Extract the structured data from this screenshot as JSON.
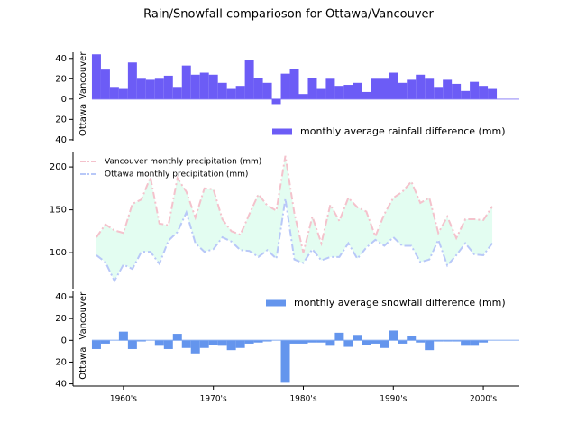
{
  "chart_data": [
    {
      "type": "bar",
      "title": "Rain/Snowfall comparioson for Ottawa/Vancouver",
      "x": [
        1957,
        1958,
        1959,
        1960,
        1961,
        1962,
        1963,
        1964,
        1965,
        1966,
        1967,
        1968,
        1969,
        1970,
        1971,
        1972,
        1973,
        1974,
        1975,
        1976,
        1977,
        1978,
        1979,
        1980,
        1981,
        1982,
        1983,
        1984,
        1985,
        1986,
        1987,
        1988,
        1989,
        1990,
        1991,
        1992,
        1993,
        1994,
        1995,
        1996,
        1997,
        1998,
        1999,
        2000,
        2001
      ],
      "series": [
        {
          "name": "monthly  average rainfall difference  (mm)",
          "color": "#6c5cf6",
          "values": [
            44,
            29,
            12,
            10,
            36,
            20,
            19,
            20,
            23,
            12,
            33,
            24,
            26,
            24,
            16,
            10,
            13,
            38,
            21,
            16,
            -5,
            25,
            30,
            5,
            21,
            10,
            20,
            13,
            14,
            16,
            7,
            20,
            20,
            26,
            16,
            19,
            24,
            20,
            12,
            19,
            15,
            8,
            17,
            13,
            10
          ]
        }
      ],
      "y_labels": {
        "positive": "Vancouver",
        "negative": "Ottawa"
      },
      "xlim": [
        1954.4,
        2004
      ],
      "ylim": [
        -41,
        46
      ],
      "yticks": [
        {
          "value": -40,
          "label": "40"
        },
        {
          "value": -20,
          "label": "20"
        },
        0,
        20,
        40
      ],
      "legend": "lower right"
    },
    {
      "type": "line",
      "x": [
        1957,
        1958,
        1959,
        1960,
        1961,
        1962,
        1963,
        1964,
        1965,
        1966,
        1967,
        1968,
        1969,
        1970,
        1971,
        1972,
        1973,
        1974,
        1975,
        1976,
        1977,
        1978,
        1979,
        1980,
        1981,
        1982,
        1983,
        1984,
        1985,
        1986,
        1987,
        1988,
        1989,
        1990,
        1991,
        1992,
        1993,
        1994,
        1995,
        1996,
        1997,
        1998,
        1999,
        2000,
        2001
      ],
      "series": [
        {
          "name": "Vancouver monthly precipitation (mm)",
          "color": "#f4c2cc",
          "values": [
            118,
            133,
            126,
            123,
            157,
            162,
            188,
            134,
            132,
            187,
            171,
            141,
            175,
            174,
            139,
            125,
            121,
            145,
            168,
            155,
            149,
            213,
            146,
            100,
            142,
            111,
            156,
            137,
            164,
            153,
            148,
            119,
            145,
            164,
            171,
            183,
            158,
            164,
            123,
            142,
            117,
            139,
            139,
            138,
            154
          ]
        },
        {
          "name": "Ottawa monthly precipitation (mm)",
          "color": "#b8c8f8",
          "values": [
            97,
            89,
            67,
            86,
            81,
            101,
            101,
            87,
            114,
            124,
            147,
            111,
            101,
            104,
            118,
            113,
            103,
            102,
            95,
            103,
            93,
            163,
            92,
            88,
            104,
            91,
            95,
            95,
            111,
            93,
            106,
            115,
            108,
            118,
            108,
            108,
            89,
            92,
            115,
            85,
            97,
            111,
            98,
            97,
            111
          ]
        }
      ],
      "fill_color": "#dcfcee",
      "xlim": [
        1954.4,
        2004
      ],
      "ylim": [
        58,
        218
      ],
      "yticks": [
        100,
        150,
        200
      ],
      "legend": "upper left"
    },
    {
      "type": "bar",
      "x": [
        1957,
        1958,
        1959,
        1960,
        1961,
        1962,
        1963,
        1964,
        1965,
        1966,
        1967,
        1968,
        1969,
        1970,
        1971,
        1972,
        1973,
        1974,
        1975,
        1976,
        1977,
        1978,
        1979,
        1980,
        1981,
        1982,
        1983,
        1984,
        1985,
        1986,
        1987,
        1988,
        1989,
        1990,
        1991,
        1992,
        1993,
        1994,
        1995,
        1996,
        1997,
        1998,
        1999,
        2000,
        2001
      ],
      "series": [
        {
          "name": "monthly  average snowfall difference  (mm)",
          "color": "#6495ed",
          "values": [
            -8,
            -3,
            0,
            8,
            -8,
            -1,
            0,
            -5,
            -8,
            6,
            -7,
            -12,
            -7,
            -4,
            -5,
            -9,
            -7,
            -3,
            -2,
            -1,
            0,
            -39,
            -3,
            -3,
            -2,
            -2,
            -5,
            7,
            -6,
            5,
            -4,
            -3,
            -7,
            9,
            -3,
            4,
            -2,
            -9,
            -1,
            -1,
            -1,
            -5,
            -5,
            -2,
            0
          ]
        }
      ],
      "y_labels": {
        "positive": "Vancouver",
        "negative": "Ottawa"
      },
      "xlim": [
        1954.4,
        2004
      ],
      "ylim": [
        -42,
        45
      ],
      "yticks": [
        {
          "value": -40,
          "label": "40"
        },
        {
          "value": -20,
          "label": "20"
        },
        0,
        20,
        40
      ],
      "xticks": [
        {
          "value": 1960,
          "label": "1960's"
        },
        {
          "value": 1970,
          "label": "1970's"
        },
        {
          "value": 1980,
          "label": "1980's"
        },
        {
          "value": 1990,
          "label": "1990's"
        },
        {
          "value": 2000,
          "label": "2000's"
        }
      ],
      "legend": "upper right"
    }
  ]
}
